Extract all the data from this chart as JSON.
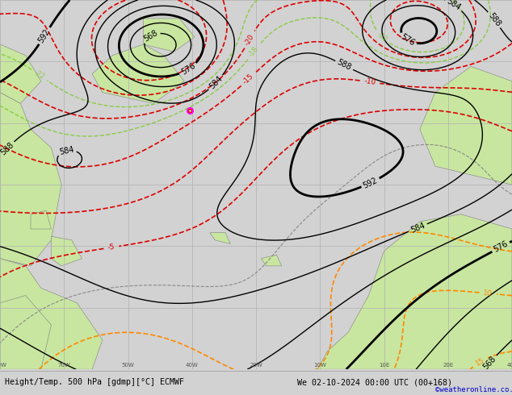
{
  "title_left": "Height/Temp. 500 hPa [gdmp][°C] ECMWF",
  "title_right": "We 02-10-2024 00:00 UTC (00+168)",
  "watermark": "©weatheronline.co.uk",
  "bg_color": "#d2d2d2",
  "ocean_color": "#d2d2d2",
  "land_color": "#c8e6a0",
  "grid_color": "#b0b0b0",
  "coast_color": "#808080",
  "contour_h_color": "#000000",
  "contour_neg_color": "#dd0000",
  "contour_pos_color": "#ff8800",
  "contour_zero_color": "#888888",
  "contour_low_color": "#88cc44",
  "figsize": [
    6.34,
    4.9
  ],
  "dpi": 100,
  "nlat": 300,
  "nlon": 300
}
